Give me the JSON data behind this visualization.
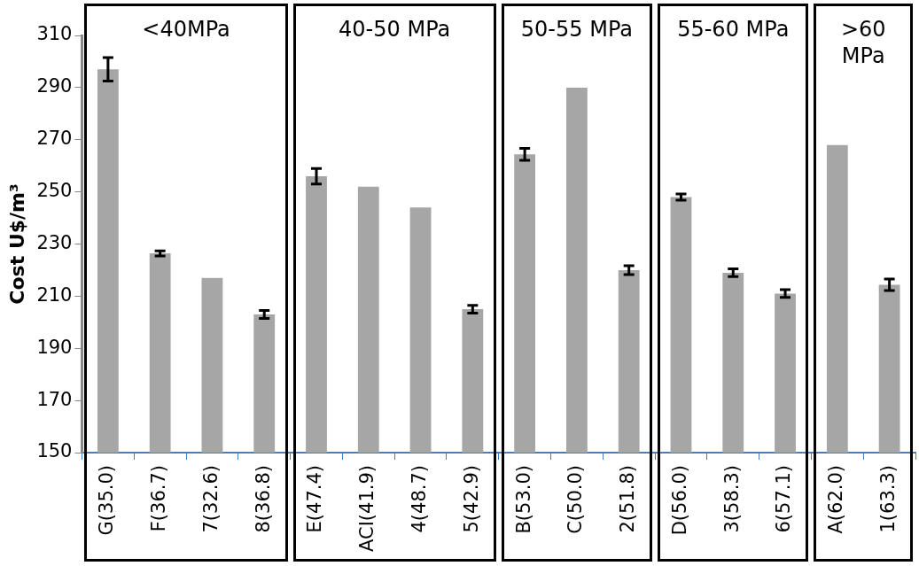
{
  "chart_data": {
    "type": "bar",
    "ylabel": "Cost U$/m³",
    "categories": [
      "G(35.0)",
      "F(36.7)",
      "7(32.6)",
      "8(36.8)",
      "E(47.4)",
      "ACI(41.9)",
      "4(48.7)",
      "5(42.9)",
      "B(53.0)",
      "C(50.0)",
      "2(51.8)",
      "D(56.0)",
      "3(58.3)",
      "6(57.1)",
      "A(62.0)",
      "1(63.3)"
    ],
    "values": [
      297,
      226.4,
      217,
      203,
      256,
      252,
      244,
      205,
      264.4,
      290,
      220,
      248,
      219,
      211,
      268,
      214.4
    ],
    "errors": [
      4.5,
      1,
      null,
      1.5,
      3,
      null,
      null,
      1.5,
      2.3,
      null,
      1.7,
      1.2,
      1.5,
      1.5,
      null,
      2.2
    ],
    "color": "#a6a6a6",
    "ylim": [
      150,
      310
    ],
    "yticks": [
      150,
      170,
      190,
      210,
      230,
      250,
      270,
      290,
      310
    ],
    "grid": false,
    "annotations": [
      "<40MPa",
      "40-50 MPa",
      "50-55 MPa",
      "55-60 MPa",
      ">60 MPa"
    ]
  }
}
